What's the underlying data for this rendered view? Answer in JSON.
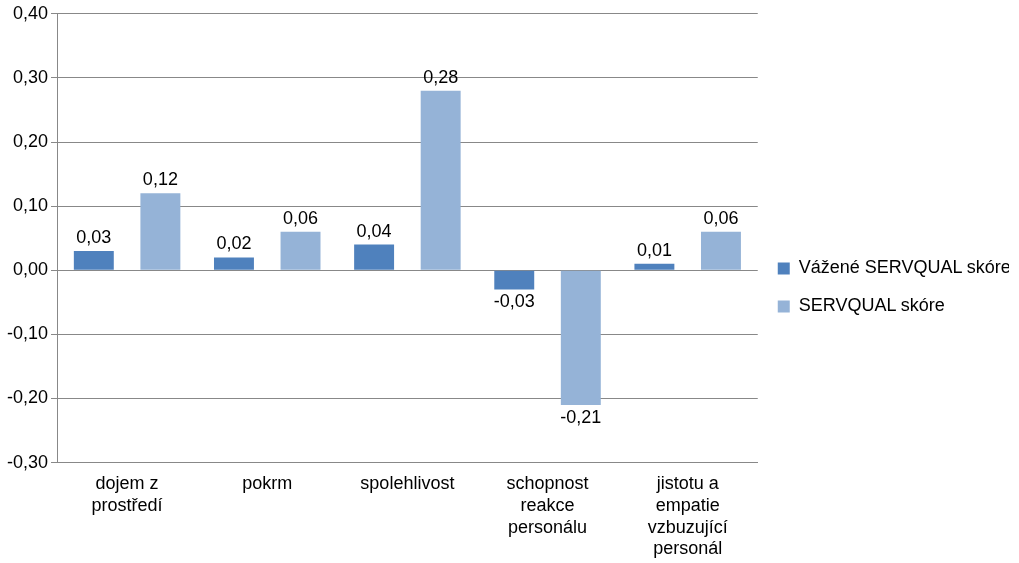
{
  "chart_data": {
    "type": "bar",
    "categories": [
      "dojem z prostředí",
      "pokrm",
      "spolehlivost",
      "schopnost reakce personálu",
      "jistotu a empatie vzbuzující personál"
    ],
    "series": [
      {
        "name": "Vážené SERVQUAL skóre",
        "color": "#4f81bd",
        "values": [
          0.03,
          0.02,
          0.04,
          -0.03,
          0.01
        ],
        "value_labels": [
          "0,03",
          "0,02",
          "0,04",
          "-0,03",
          "0,01"
        ]
      },
      {
        "name": "SERVQUAL skóre",
        "color": "#95b3d7",
        "values": [
          0.12,
          0.06,
          0.28,
          -0.21,
          0.06
        ],
        "value_labels": [
          "0,12",
          "0,06",
          "0,28",
          "-0,21",
          "0,06"
        ]
      }
    ],
    "ylim": [
      -0.3,
      0.4
    ],
    "yticks": [
      {
        "value": -0.3,
        "label": "-0,30"
      },
      {
        "value": -0.2,
        "label": "-0,20"
      },
      {
        "value": -0.1,
        "label": "-0,10"
      },
      {
        "value": 0,
        "label": "0,00"
      },
      {
        "value": 0.1,
        "label": "0,10"
      },
      {
        "value": 0.2,
        "label": "0,20"
      },
      {
        "value": 0.3,
        "label": "0,30"
      },
      {
        "value": 0.4,
        "label": "0,40"
      }
    ],
    "grid": "y",
    "legend": "right"
  }
}
